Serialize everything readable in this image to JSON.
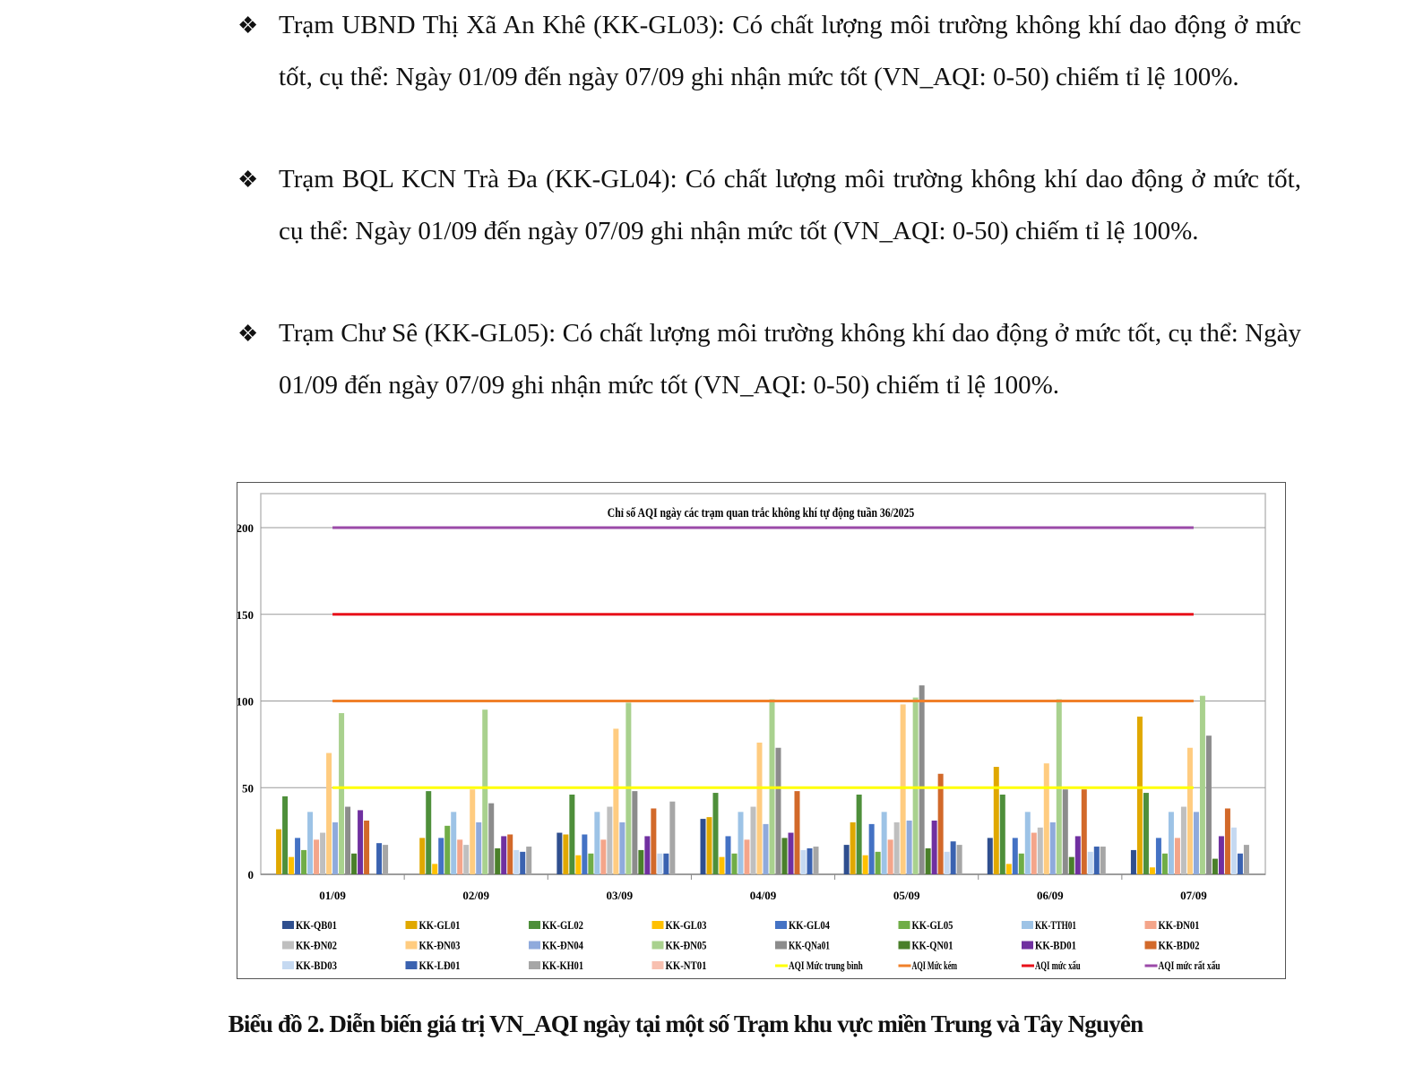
{
  "paragraphs": [
    {
      "bullet": "❖",
      "text": "Trạm UBND Thị Xã An Khê (KK-GL03): Có chất lượng môi trường không khí dao động ở mức tốt, cụ thể: Ngày 01/09 đến ngày 07/09 ghi nhận mức tốt (VN_AQI: 0-50) chiếm tỉ lệ 100%."
    },
    {
      "bullet": "❖",
      "text": "Trạm BQL KCN Trà Đa (KK-GL04): Có chất lượng môi trường không khí dao động ở mức tốt, cụ thể: Ngày 01/09 đến ngày 07/09 ghi nhận mức tốt (VN_AQI: 0-50) chiếm tỉ lệ 100%."
    },
    {
      "bullet": "❖",
      "text": "Trạm Chư Sê (KK-GL05): Có chất lượng môi trường không khí dao động ở mức tốt, cụ thể: Ngày 01/09 đến ngày 07/09 ghi nhận mức tốt (VN_AQI: 0-50) chiếm tỉ lệ 100%."
    }
  ],
  "caption": "Biểu đồ 2. Diễn biến giá trị VN_AQI ngày tại một số Trạm khu vực miền Trung và Tây Nguyên",
  "chart_data": {
    "type": "bar",
    "title": "Chỉ số AQI ngày các trạm quan trắc không khí tự động tuần 36/2025",
    "xlabel": "",
    "ylabel": "",
    "ylim": [
      0,
      200
    ],
    "yticks": [
      0,
      50,
      100,
      150,
      200
    ],
    "grid": true,
    "legend_position": "bottom",
    "categories": [
      "01/09",
      "02/09",
      "03/09",
      "04/09",
      "05/09",
      "06/09",
      "07/09"
    ],
    "series": [
      {
        "name": "KK-QB01",
        "color": "#2f4f8f",
        "values": [
          0,
          0,
          24,
          32,
          17,
          21,
          14
        ]
      },
      {
        "name": "KK-GL01",
        "color": "#e0a800",
        "values": [
          26,
          21,
          23,
          33,
          30,
          62,
          91
        ]
      },
      {
        "name": "KK-GL02",
        "color": "#4e8f3a",
        "values": [
          45,
          48,
          46,
          47,
          46,
          46,
          47
        ]
      },
      {
        "name": "KK-GL03",
        "color": "#ffc000",
        "values": [
          10,
          6,
          11,
          10,
          11,
          6,
          4
        ]
      },
      {
        "name": "KK-GL04",
        "color": "#4472c4",
        "values": [
          21,
          21,
          23,
          22,
          29,
          21,
          21
        ]
      },
      {
        "name": "KK-GL05",
        "color": "#70ad47",
        "values": [
          14,
          28,
          12,
          12,
          13,
          12,
          12
        ]
      },
      {
        "name": "KK-TTH01",
        "color": "#9dc3e6",
        "values": [
          36,
          36,
          36,
          36,
          36,
          36,
          36
        ]
      },
      {
        "name": "KK-ĐN01",
        "color": "#f4a58a",
        "values": [
          20,
          20,
          20,
          20,
          20,
          24,
          21
        ]
      },
      {
        "name": "KK-ĐN02",
        "color": "#bfbfbf",
        "values": [
          24,
          17,
          39,
          39,
          30,
          27,
          39
        ]
      },
      {
        "name": "KK-ĐN03",
        "color": "#ffcc80",
        "values": [
          70,
          49,
          84,
          76,
          98,
          64,
          73
        ]
      },
      {
        "name": "KK-ĐN04",
        "color": "#8faadc",
        "values": [
          30,
          30,
          30,
          29,
          31,
          30,
          36
        ]
      },
      {
        "name": "KK-ĐN05",
        "color": "#a9d18e",
        "values": [
          93,
          95,
          99,
          101,
          102,
          101,
          103
        ]
      },
      {
        "name": "KK-QNa01",
        "color": "#8c8c8c",
        "values": [
          39,
          41,
          48,
          73,
          109,
          49,
          80
        ]
      },
      {
        "name": "KK-QN01",
        "color": "#4a7f2a",
        "values": [
          12,
          15,
          14,
          21,
          15,
          10,
          9
        ]
      },
      {
        "name": "KK-BD01",
        "color": "#7030a0",
        "values": [
          37,
          22,
          22,
          24,
          31,
          22,
          22
        ]
      },
      {
        "name": "KK-BD02",
        "color": "#d2692a",
        "values": [
          31,
          23,
          38,
          48,
          58,
          49,
          38
        ]
      },
      {
        "name": "KK-BD03",
        "color": "#c5d9f1",
        "values": [
          0,
          14,
          12,
          14,
          13,
          13,
          27
        ]
      },
      {
        "name": "KK-LĐ01",
        "color": "#3a62b0",
        "values": [
          18,
          13,
          12,
          15,
          19,
          16,
          12
        ]
      },
      {
        "name": "KK-KH01",
        "color": "#a6a6a6",
        "values": [
          17,
          16,
          42,
          16,
          17,
          16,
          17
        ]
      },
      {
        "name": "KK-NT01",
        "color": "#f8c0b0",
        "values": [
          0,
          0,
          0,
          0,
          0,
          0,
          0
        ]
      }
    ],
    "lines": [
      {
        "name": "AQI Mức trung bình",
        "color": "#ffff00",
        "value": 50
      },
      {
        "name": "AQI Mức kém",
        "color": "#f0802a",
        "value": 100
      },
      {
        "name": "AQI mức xấu",
        "color": "#e8101a",
        "value": 150
      },
      {
        "name": "AQI mức rất xấu",
        "color": "#9b4aa8",
        "value": 200
      }
    ]
  }
}
